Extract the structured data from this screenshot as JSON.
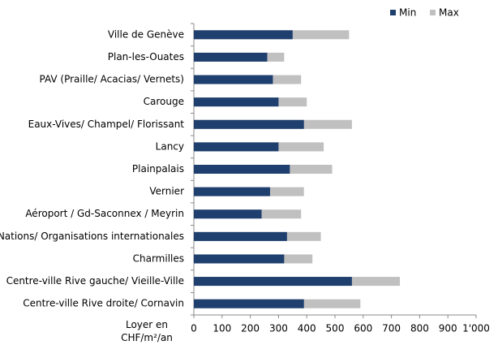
{
  "chart_data": {
    "type": "bar",
    "orientation": "horizontal",
    "x_label": "Loyer en CHF/m²/an",
    "categories": [
      "Ville de Genève",
      "Plan-les-Ouates",
      "PAV (Praille/ Acacias/ Vernets)",
      "Carouge",
      "Eaux-Vives/ Champel/ Florissant",
      "Lancy",
      "Plainpalais",
      "Vernier",
      "Aéroport / Gd-Saconnex / Meyrin",
      "Nations/ Organisations internationales",
      "Charmilles",
      "Centre-ville Rive gauche/ Vieille-Ville",
      "Centre-ville Rive droite/ Cornavin"
    ],
    "series": [
      {
        "name": "Min",
        "color": "#1f3f6e",
        "values": [
          350,
          260,
          280,
          300,
          390,
          300,
          340,
          270,
          240,
          330,
          320,
          560,
          390
        ]
      },
      {
        "name": "Max",
        "color": "#c0c0c0",
        "values": [
          550,
          320,
          380,
          400,
          560,
          460,
          490,
          390,
          380,
          450,
          420,
          730,
          590
        ]
      }
    ],
    "xlim": [
      0,
      1000
    ],
    "xticks": [
      0,
      100,
      200,
      300,
      400,
      500,
      600,
      700,
      800,
      900,
      {
        "value": 1000,
        "label": "1'000"
      }
    ],
    "legend": "top-right"
  }
}
